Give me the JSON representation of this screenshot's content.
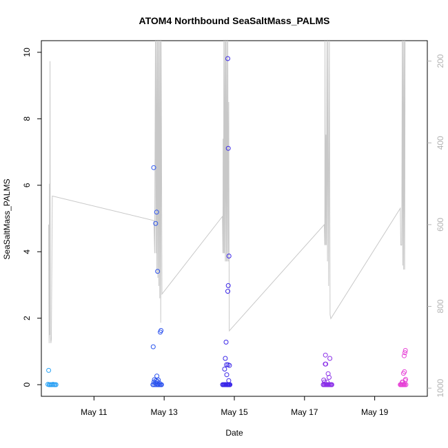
{
  "chart_data": {
    "type": "scatter",
    "title": "ATOM4 Northbound SeaSaltMass_PALMS",
    "xlabel": "Date",
    "ylabel": "SeaSaltMass_PALMS",
    "xlim": [
      "2017-05-09T12:00",
      "2017-05-20T12:00"
    ],
    "ylim": [
      -0.35,
      10.35
    ],
    "yticks": [
      0,
      2,
      4,
      6,
      8,
      10
    ],
    "xticks": [
      {
        "date": "2017-05-11",
        "label": "May 11"
      },
      {
        "date": "2017-05-13",
        "label": "May 13"
      },
      {
        "date": "2017-05-15",
        "label": "May 15"
      },
      {
        "date": "2017-05-17",
        "label": "May 17"
      },
      {
        "date": "2017-05-19",
        "label": "May 19"
      }
    ],
    "secondary_axis": {
      "label": "",
      "ylim": [
        1020,
        150
      ],
      "ticks": [
        200,
        400,
        600,
        800,
        1000
      ],
      "color": "#b3b3b3",
      "series": [
        {
          "name": "",
          "color": "#c8c8c8",
          "points": [
            [
              "2017-05-09T17:00",
              600
            ],
            [
              "2017-05-09T17:10",
              820
            ],
            [
              "2017-05-09T17:20",
              890
            ],
            [
              "2017-05-09T17:30",
              500
            ],
            [
              "2017-05-09T17:40",
              870
            ],
            [
              "2017-05-09T17:55",
              200
            ],
            [
              "2017-05-09T18:10",
              870
            ],
            [
              "2017-05-09T18:30",
              890
            ],
            [
              "2017-05-09T18:50",
              880
            ],
            [
              "2017-05-09T19:30",
              530
            ],
            [
              "2017-05-12T17:00",
              590
            ],
            [
              "2017-05-12T17:30",
              670
            ],
            [
              "2017-05-12T18:00",
              150
            ],
            [
              "2017-05-12T18:20",
              670
            ],
            [
              "2017-05-12T18:40",
              150
            ],
            [
              "2017-05-12T19:00",
              720
            ],
            [
              "2017-05-12T19:20",
              150
            ],
            [
              "2017-05-12T19:40",
              730
            ],
            [
              "2017-05-12T20:00",
              150
            ],
            [
              "2017-05-12T20:20",
              750
            ],
            [
              "2017-05-12T20:40",
              150
            ],
            [
              "2017-05-12T21:00",
              780
            ],
            [
              "2017-05-12T21:20",
              150
            ],
            [
              "2017-05-12T21:40",
              840
            ],
            [
              "2017-05-12T22:00",
              150
            ],
            [
              "2017-05-12T22:30",
              770
            ],
            [
              "2017-05-14T15:50",
              580
            ],
            [
              "2017-05-14T16:10",
              670
            ],
            [
              "2017-05-14T16:20",
              390
            ],
            [
              "2017-05-14T16:35",
              670
            ],
            [
              "2017-05-14T16:50",
              150
            ],
            [
              "2017-05-14T17:10",
              670
            ],
            [
              "2017-05-14T17:30",
              150
            ],
            [
              "2017-05-14T17:50",
              690
            ],
            [
              "2017-05-14T18:10",
              150
            ],
            [
              "2017-05-14T18:30",
              690
            ],
            [
              "2017-05-14T18:50",
              150
            ],
            [
              "2017-05-14T19:10",
              690
            ],
            [
              "2017-05-14T19:30",
              150
            ],
            [
              "2017-05-14T19:50",
              690
            ],
            [
              "2017-05-14T20:10",
              300
            ],
            [
              "2017-05-14T20:30",
              860
            ],
            [
              "2017-05-17T13:30",
              600
            ],
            [
              "2017-05-17T13:50",
              650
            ],
            [
              "2017-05-17T14:00",
              150
            ],
            [
              "2017-05-17T14:20",
              650
            ],
            [
              "2017-05-17T14:40",
              380
            ],
            [
              "2017-05-17T15:00",
              650
            ],
            [
              "2017-05-17T15:20",
              150
            ],
            [
              "2017-05-17T15:40",
              690
            ],
            [
              "2017-05-17T16:00",
              150
            ],
            [
              "2017-05-17T16:30",
              750
            ],
            [
              "2017-05-17T17:00",
              150
            ],
            [
              "2017-05-17T17:30",
              820
            ],
            [
              "2017-05-17T18:00",
              830
            ],
            [
              "2017-05-19T17:30",
              560
            ],
            [
              "2017-05-19T17:50",
              650
            ],
            [
              "2017-05-19T18:30",
              650
            ],
            [
              "2017-05-19T18:50",
              150
            ],
            [
              "2017-05-19T19:10",
              700
            ],
            [
              "2017-05-19T19:30",
              150
            ],
            [
              "2017-05-19T19:50",
              710
            ],
            [
              "2017-05-19T20:10",
              150
            ],
            [
              "2017-05-19T20:30",
              710
            ],
            [
              "2017-05-19T20:50",
              150
            ]
          ]
        }
      ]
    },
    "series": [
      {
        "name": "",
        "marker": "open-circle",
        "points": [
          [
            "2017-05-09T17:00",
            0.43,
            "#29a3f5"
          ],
          [
            "2017-05-09T16:30",
            0.01,
            "#29a3f5"
          ],
          [
            "2017-05-09T17:20",
            0.0,
            "#29a3f5"
          ],
          [
            "2017-05-09T18:00",
            0.0,
            "#2aa0f4"
          ],
          [
            "2017-05-09T18:40",
            0.0,
            "#2aa0f4"
          ],
          [
            "2017-05-09T19:20",
            0.0,
            "#2aa0f4"
          ],
          [
            "2017-05-09T20:00",
            0.01,
            "#2aa0f4"
          ],
          [
            "2017-05-09T20:40",
            0.0,
            "#2aa0f4"
          ],
          [
            "2017-05-09T21:20",
            0.0,
            "#2aa0f4"
          ],
          [
            "2017-05-09T22:00",
            0.0,
            "#2aa0f4"
          ],
          [
            "2017-05-12T16:50",
            6.53,
            "#2a54ee"
          ],
          [
            "2017-05-12T18:10",
            4.85,
            "#2a52ee"
          ],
          [
            "2017-05-12T18:50",
            5.19,
            "#2a52ee"
          ],
          [
            "2017-05-12T19:30",
            3.41,
            "#2a50ee"
          ],
          [
            "2017-05-12T16:30",
            1.14,
            "#2a55ee"
          ],
          [
            "2017-05-12T21:20",
            1.58,
            "#2a50ee"
          ],
          [
            "2017-05-12T21:50",
            1.63,
            "#2a50ee"
          ],
          [
            "2017-05-12T16:20",
            0.0,
            "#2a55ee"
          ],
          [
            "2017-05-12T16:40",
            0.0,
            "#2a55ee"
          ],
          [
            "2017-05-12T17:00",
            0.08,
            "#2a55ee"
          ],
          [
            "2017-05-12T17:20",
            0.15,
            "#2a54ee"
          ],
          [
            "2017-05-12T17:40",
            0.0,
            "#2a54ee"
          ],
          [
            "2017-05-12T18:00",
            0.05,
            "#2a54ee"
          ],
          [
            "2017-05-12T18:20",
            0.12,
            "#2a54ee"
          ],
          [
            "2017-05-12T18:40",
            0.0,
            "#2a52ee"
          ],
          [
            "2017-05-12T19:00",
            0.26,
            "#2a52ee"
          ],
          [
            "2017-05-12T19:20",
            0.1,
            "#2a52ee"
          ],
          [
            "2017-05-12T19:40",
            0.0,
            "#2a52ee"
          ],
          [
            "2017-05-12T20:00",
            0.14,
            "#2a50ee"
          ],
          [
            "2017-05-12T20:20",
            0.0,
            "#2a50ee"
          ],
          [
            "2017-05-12T20:40",
            0.05,
            "#2a50ee"
          ],
          [
            "2017-05-12T21:00",
            0.0,
            "#2a50ee"
          ],
          [
            "2017-05-12T21:40",
            0.0,
            "#2a50ee"
          ],
          [
            "2017-05-12T22:10",
            0.0,
            "#2a50ee"
          ],
          [
            "2017-05-14T19:30",
            9.81,
            "#3a26e8"
          ],
          [
            "2017-05-14T19:50",
            7.11,
            "#3a26e8"
          ],
          [
            "2017-05-14T20:20",
            3.87,
            "#3a26e8"
          ],
          [
            "2017-05-14T19:50",
            2.98,
            "#3a26e8"
          ],
          [
            "2017-05-14T19:30",
            2.81,
            "#3a26e8"
          ],
          [
            "2017-05-14T18:20",
            1.28,
            "#3a26e8"
          ],
          [
            "2017-05-14T17:50",
            0.79,
            "#3a26e8"
          ],
          [
            "2017-05-14T18:40",
            0.6,
            "#3a26e8"
          ],
          [
            "2017-05-14T19:40",
            0.6,
            "#3a26e8"
          ],
          [
            "2017-05-14T20:40",
            0.58,
            "#3a26e8"
          ],
          [
            "2017-05-14T17:20",
            0.47,
            "#3a26e8"
          ],
          [
            "2017-05-14T18:50",
            0.3,
            "#3a26e8"
          ],
          [
            "2017-05-14T20:10",
            0.12,
            "#3a26e8"
          ],
          [
            "2017-05-14T16:00",
            0.0,
            "#3a26e8"
          ],
          [
            "2017-05-14T16:30",
            0.0,
            "#3a26e8"
          ],
          [
            "2017-05-14T17:00",
            0.0,
            "#3a26e8"
          ],
          [
            "2017-05-14T17:30",
            0.0,
            "#3a26e8"
          ],
          [
            "2017-05-14T18:00",
            0.0,
            "#3a26e8"
          ],
          [
            "2017-05-14T18:30",
            0.0,
            "#3a26e8"
          ],
          [
            "2017-05-14T19:00",
            0.0,
            "#3a26e8"
          ],
          [
            "2017-05-14T19:20",
            0.0,
            "#3a26e8"
          ],
          [
            "2017-05-14T19:40",
            0.0,
            "#3a26e8"
          ],
          [
            "2017-05-14T20:00",
            0.0,
            "#3a26e8"
          ],
          [
            "2017-05-14T20:30",
            0.0,
            "#3a26e8"
          ],
          [
            "2017-05-14T21:00",
            0.0,
            "#3a26e8"
          ],
          [
            "2017-05-17T14:20",
            0.89,
            "#8a2ee8"
          ],
          [
            "2017-05-17T17:20",
            0.79,
            "#8a2ee8"
          ],
          [
            "2017-05-17T14:10",
            0.62,
            "#8a2ee8"
          ],
          [
            "2017-05-17T14:30",
            0.62,
            "#8a2ee8"
          ],
          [
            "2017-05-17T16:10",
            0.33,
            "#8a2ee8"
          ],
          [
            "2017-05-17T16:50",
            0.22,
            "#8a2ee8"
          ],
          [
            "2017-05-17T13:10",
            0.14,
            "#8a2ee8"
          ],
          [
            "2017-05-17T13:40",
            0.08,
            "#8a2ee8"
          ],
          [
            "2017-05-17T15:30",
            0.08,
            "#8a2ee8"
          ],
          [
            "2017-05-17T12:50",
            0.0,
            "#8a2ee8"
          ],
          [
            "2017-05-17T13:20",
            0.0,
            "#8a2ee8"
          ],
          [
            "2017-05-17T14:00",
            0.0,
            "#8a2ee8"
          ],
          [
            "2017-05-17T14:40",
            0.0,
            "#8a2ee8"
          ],
          [
            "2017-05-17T15:10",
            0.0,
            "#8a2ee8"
          ],
          [
            "2017-05-17T15:50",
            0.0,
            "#8a2ee8"
          ],
          [
            "2017-05-17T16:30",
            0.0,
            "#8a2ee8"
          ],
          [
            "2017-05-17T17:00",
            0.0,
            "#8a2ee8"
          ],
          [
            "2017-05-17T17:40",
            0.0,
            "#8a2ee8"
          ],
          [
            "2017-05-17T18:10",
            0.0,
            "#8a2ee8"
          ],
          [
            "2017-05-17T18:40",
            0.0,
            "#8a2ee8"
          ],
          [
            "2017-05-19T21:00",
            1.03,
            "#e640d6"
          ],
          [
            "2017-05-19T20:40",
            0.96,
            "#e640d6"
          ],
          [
            "2017-05-19T20:10",
            0.87,
            "#e640d6"
          ],
          [
            "2017-05-19T20:20",
            0.39,
            "#e640d6"
          ],
          [
            "2017-05-19T19:40",
            0.34,
            "#e640d6"
          ],
          [
            "2017-05-19T21:10",
            0.16,
            "#e640d6"
          ],
          [
            "2017-05-19T20:50",
            0.12,
            "#e640d6"
          ],
          [
            "2017-05-19T18:50",
            0.08,
            "#e640d6"
          ],
          [
            "2017-05-19T19:20",
            0.08,
            "#e640d6"
          ],
          [
            "2017-05-19T17:30",
            0.0,
            "#e640d6"
          ],
          [
            "2017-05-19T18:00",
            0.0,
            "#e640d6"
          ],
          [
            "2017-05-19T18:30",
            0.0,
            "#e640d6"
          ],
          [
            "2017-05-19T19:00",
            0.0,
            "#e640d6"
          ],
          [
            "2017-05-19T19:30",
            0.0,
            "#e640d6"
          ],
          [
            "2017-05-19T20:00",
            0.0,
            "#e640d6"
          ],
          [
            "2017-05-19T20:30",
            0.0,
            "#e640d6"
          ],
          [
            "2017-05-19T21:20",
            0.0,
            "#e640d6"
          ]
        ]
      }
    ],
    "grid": false,
    "legend": "none"
  }
}
